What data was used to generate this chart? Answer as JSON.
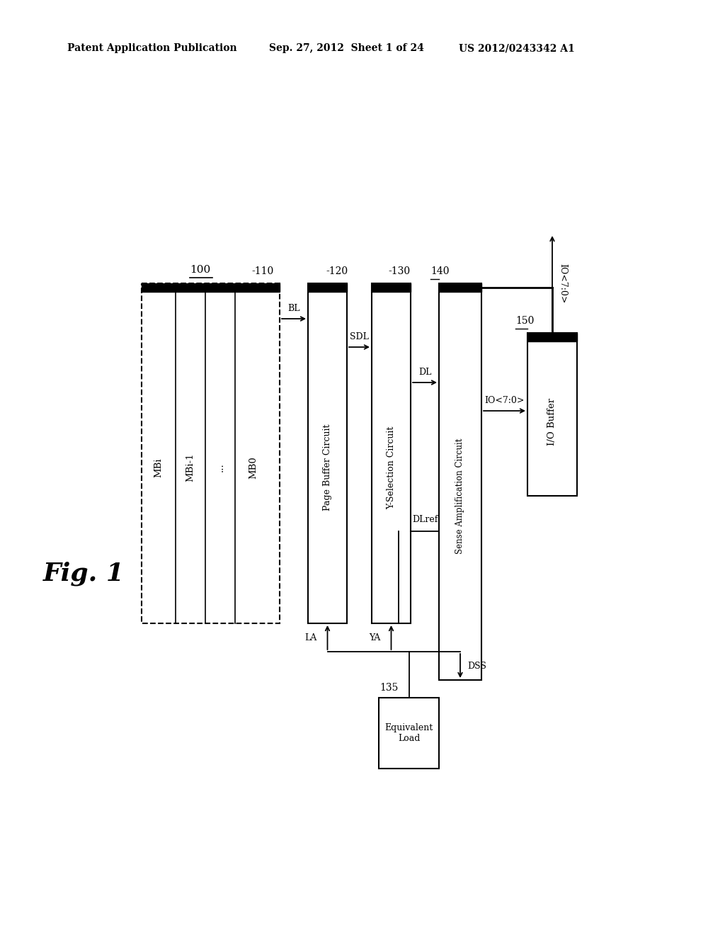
{
  "bg_color": "#ffffff",
  "header_left": "Patent Application Publication",
  "header_mid": "Sep. 27, 2012  Sheet 1 of 24",
  "header_right": "US 2012/0243342 A1",
  "fig_label": "Fig. 1",
  "label_100": "100",
  "label_110": "-110",
  "label_120": "-120",
  "label_130": "-130",
  "label_135": "135",
  "label_140": "140",
  "label_150": "150",
  "col_texts": [
    "MBi",
    "MBi-1",
    "...",
    "MB0"
  ],
  "signal_BL": "BL",
  "signal_SDL": "SDL",
  "signal_DL": "DL",
  "signal_DLref": "DLref",
  "signal_LA": "LA",
  "signal_YA": "YA",
  "signal_DSS": "DSS",
  "signal_IO_lower": "IO<7:0>",
  "signal_IO_upper": "IO<7:0>"
}
